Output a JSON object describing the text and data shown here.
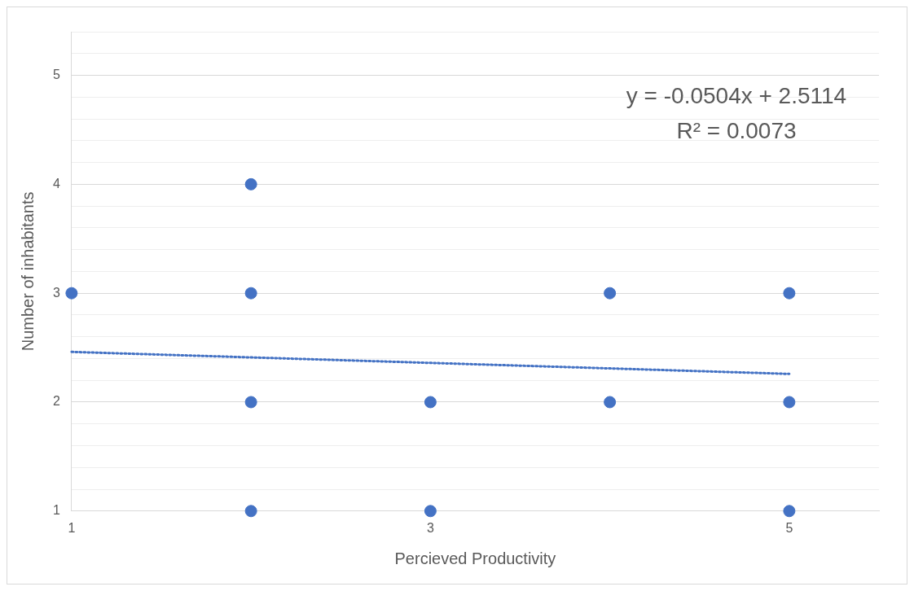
{
  "chart_data": {
    "type": "scatter",
    "xlabel": "Percieved Productivity",
    "ylabel": "Number of inhabitants",
    "xlim": [
      1,
      5.5
    ],
    "ylim": [
      1,
      5.4
    ],
    "xticks": [
      1,
      3,
      5
    ],
    "yticks": [
      1,
      {
        "value": 1.2,
        "label": null
      },
      {
        "value": 1.4,
        "label": null
      },
      {
        "value": 1.6,
        "label": null
      },
      {
        "value": 1.8,
        "label": null
      },
      2,
      {
        "value": 2.2,
        "label": null
      },
      {
        "value": 2.4,
        "label": null
      },
      {
        "value": 2.6,
        "label": null
      },
      {
        "value": 2.8,
        "label": null
      },
      3,
      {
        "value": 3.2,
        "label": null
      },
      {
        "value": 3.4,
        "label": null
      },
      {
        "value": 3.6,
        "label": null
      },
      {
        "value": 3.8,
        "label": null
      },
      4,
      {
        "value": 4.2,
        "label": null
      },
      {
        "value": 4.4,
        "label": null
      },
      {
        "value": 4.6,
        "label": null
      },
      {
        "value": 4.8,
        "label": null
      },
      5,
      {
        "value": 5.2,
        "label": null
      },
      {
        "value": 5.4,
        "label": null
      }
    ],
    "grid": "y",
    "legend": false,
    "annotations": [
      "y = -0.0504x + 2.5114",
      "R² = 0.0073"
    ],
    "series": [
      {
        "color": "#4472c4",
        "marker": "circle",
        "x": [
          1,
          2,
          2,
          2,
          2,
          3,
          3,
          4,
          4,
          5,
          5,
          5
        ],
        "values": [
          3,
          4,
          3,
          2,
          1,
          2,
          1,
          3,
          2,
          3,
          2,
          1
        ]
      },
      {
        "type": "line",
        "color": "#4472c4",
        "line_style": "dotted",
        "marker": "none",
        "x": [
          1,
          5
        ],
        "values": [
          2.461,
          2.259
        ]
      }
    ]
  }
}
